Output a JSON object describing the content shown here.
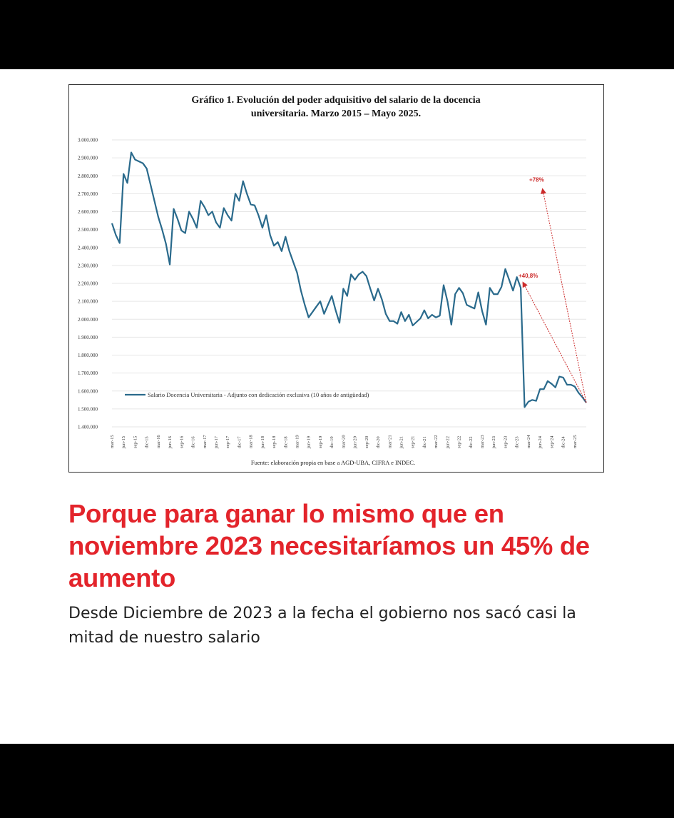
{
  "headline": "Porque para ganar lo mismo que en noviembre 2023 necesitaríamos un 45% de aumento",
  "subtext": "Desde Diciembre de 2023 a la fecha el gobierno nos sacó casi la mitad de nuestro salario",
  "colors": {
    "line": "#2a6a8c",
    "arrow": "#cc2b2b",
    "headline": "#e3242b",
    "grid": "#e6e6e6"
  },
  "chart_data": {
    "type": "line",
    "title_lines": [
      "Gráfico 1. Evolución del poder adquisitivo del salario de la docencia",
      "universitaria. Marzo 2015 – Mayo 2025."
    ],
    "source": "Fuente: elaboración propia en base a AGD-UBA, CIFRA e INDEC.",
    "legend_label": "Salario Docencia Universitaria - Adjunto con dedicación exclusiva (10 años de antigüedad)",
    "legend_position": "bottom-left",
    "grid": true,
    "ylim": [
      1400000,
      3000000
    ],
    "y_ticks": [
      {
        "value": 1400000,
        "label": "1.400.000"
      },
      {
        "value": 1500000,
        "label": "1.500.000"
      },
      {
        "value": 1600000,
        "label": "1.600.000"
      },
      {
        "value": 1700000,
        "label": "1.700.000"
      },
      {
        "value": 1800000,
        "label": "1.800.000"
      },
      {
        "value": 1900000,
        "label": "1.900.000"
      },
      {
        "value": 2000000,
        "label": "2.000.000"
      },
      {
        "value": 2100000,
        "label": "2.100.000"
      },
      {
        "value": 2200000,
        "label": "2.200.000"
      },
      {
        "value": 2300000,
        "label": "2.300.000"
      },
      {
        "value": 2400000,
        "label": "2.400.000"
      },
      {
        "value": 2500000,
        "label": "2.500.000"
      },
      {
        "value": 2600000,
        "label": "2.600.000"
      },
      {
        "value": 2700000,
        "label": "2.700.000"
      },
      {
        "value": 2800000,
        "label": "2.800.000"
      },
      {
        "value": 2900000,
        "label": "2.900.000"
      },
      {
        "value": 3000000,
        "label": "3.000.000"
      }
    ],
    "x_tick_labels": [
      "mar-15",
      "jun-15",
      "sep-15",
      "dic-15",
      "mar-16",
      "jun-16",
      "sep-16",
      "dic-16",
      "mar-17",
      "jun-17",
      "sep-17",
      "dic-17",
      "mar-18",
      "jun-18",
      "sep-18",
      "dic-18",
      "mar-19",
      "jun-19",
      "sep-19",
      "dic-19",
      "mar-20",
      "jun-20",
      "sep-20",
      "dic-20",
      "mar-21",
      "jun-21",
      "sep-21",
      "dic-21",
      "mar-22",
      "jun-22",
      "sep-22",
      "dic-22",
      "mar-23",
      "jun-23",
      "sep-23",
      "dic-23",
      "mar-24",
      "jun-24",
      "sep-24",
      "dic-24",
      "mar-25"
    ],
    "series": [
      {
        "values": [
          2535000,
          2470000,
          2425000,
          2810000,
          2760000,
          2930000,
          2890000,
          2880000,
          2870000,
          2840000,
          2750000,
          2660000,
          2570000,
          2500000,
          2420000,
          2305000,
          2615000,
          2560000,
          2495000,
          2480000,
          2600000,
          2560000,
          2510000,
          2660000,
          2625000,
          2580000,
          2600000,
          2540000,
          2510000,
          2620000,
          2580000,
          2550000,
          2700000,
          2660000,
          2770000,
          2700000,
          2640000,
          2635000,
          2580000,
          2510000,
          2580000,
          2470000,
          2410000,
          2430000,
          2380000,
          2460000,
          2380000,
          2320000,
          2260000,
          2160000,
          2080000,
          2010000,
          2040000,
          2070000,
          2100000,
          2030000,
          2080000,
          2130000,
          2050000,
          1980000,
          2170000,
          2130000,
          2250000,
          2220000,
          2250000,
          2265000,
          2240000,
          2170000,
          2105000,
          2170000,
          2110000,
          2030000,
          1990000,
          1990000,
          1975000,
          2040000,
          1990000,
          2025000,
          1965000,
          1985000,
          2005000,
          2050000,
          2005000,
          2025000,
          2010000,
          2020000,
          2190000,
          2100000,
          1970000,
          2140000,
          2175000,
          2145000,
          2080000,
          2070000,
          2060000,
          2150000,
          2045000,
          1970000,
          2175000,
          2140000,
          2140000,
          2180000,
          2280000,
          2220000,
          2160000,
          2235000,
          2175000,
          1510000,
          1540000,
          1550000,
          1545000,
          1610000,
          1610000,
          1655000,
          1640000,
          1620000,
          1680000,
          1675000,
          1635000,
          1635000,
          1625000,
          1590000,
          1565000,
          1535000
        ]
      }
    ],
    "annotations": [
      {
        "text": "+40,8%",
        "target_value": 2200000
      },
      {
        "text": "+78%",
        "target_value": 2720000
      }
    ]
  }
}
